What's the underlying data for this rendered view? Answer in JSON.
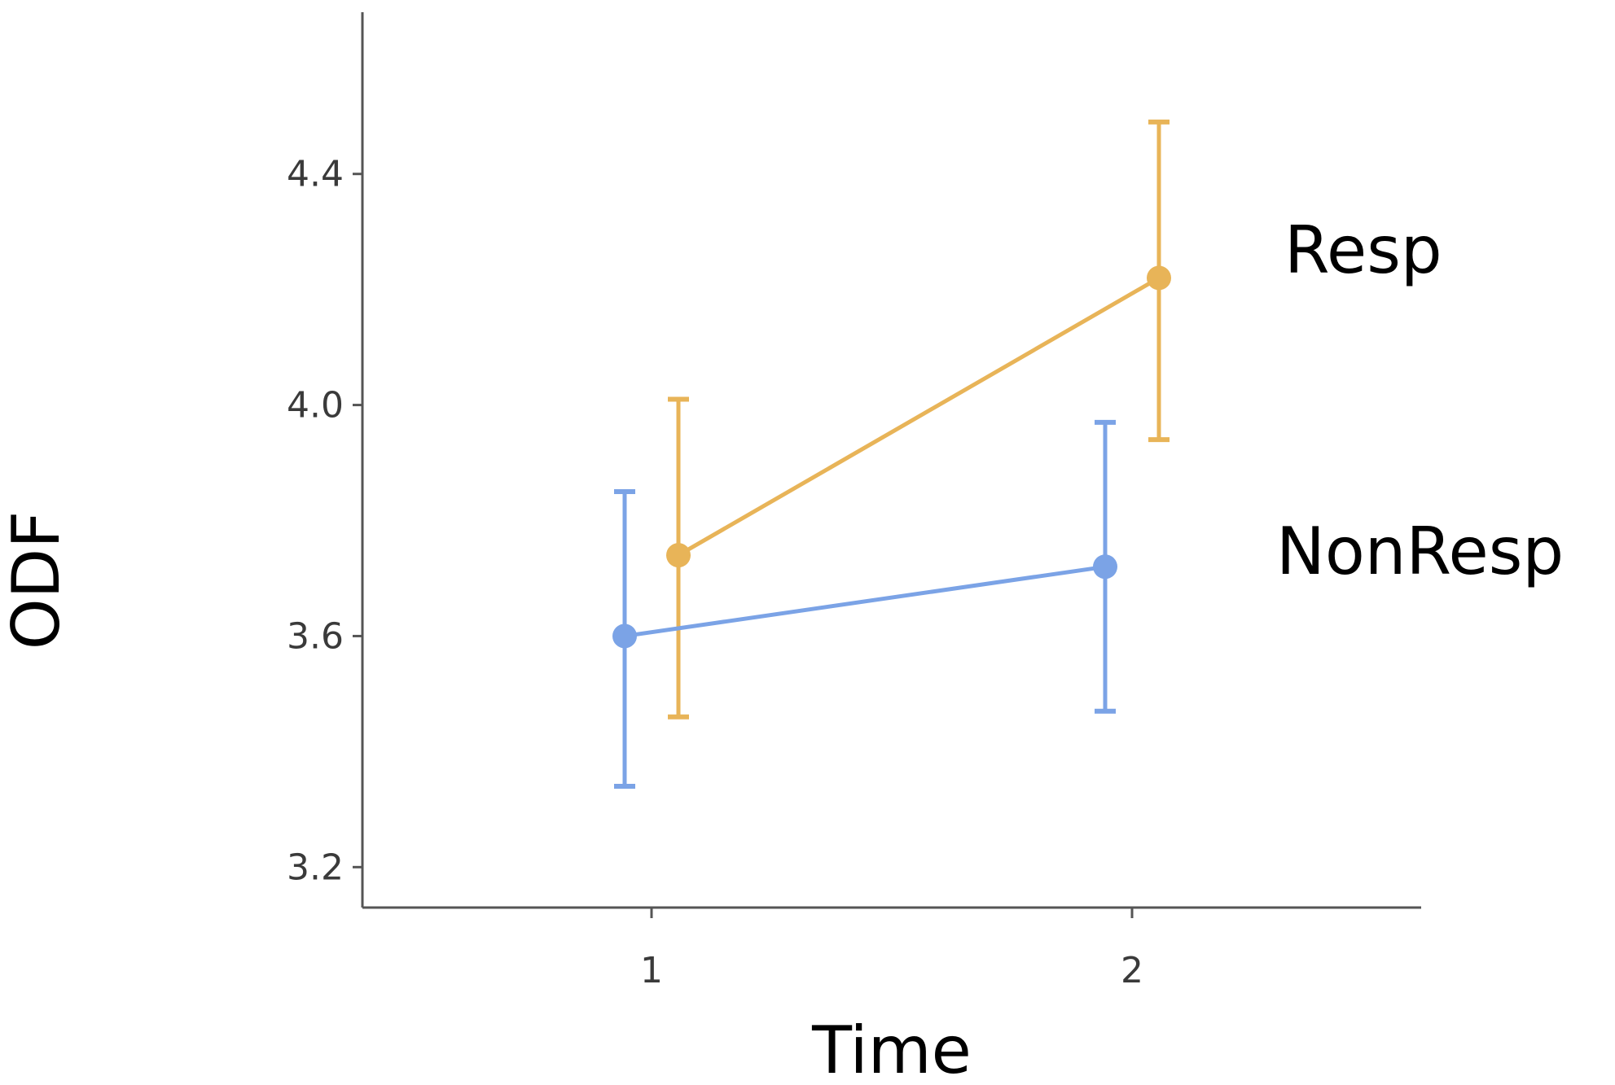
{
  "chart_data": {
    "type": "line",
    "xlabel": "Time",
    "ylabel": "ODF",
    "x": [
      1,
      2
    ],
    "x_tick_labels": [
      "1",
      "2"
    ],
    "ylim": [
      3.13,
      4.68
    ],
    "y_ticks": [
      3.2,
      3.6,
      4.0,
      4.4
    ],
    "y_tick_labels": [
      "3.2",
      "3.6",
      "4.0",
      "4.4"
    ],
    "grid": false,
    "legend": "direct labels at right of plot",
    "series": [
      {
        "name": "Resp",
        "color": "#e8b458",
        "values": [
          3.74,
          4.22
        ],
        "error_low": [
          3.46,
          3.94
        ],
        "error_high": [
          4.01,
          4.49
        ]
      },
      {
        "name": "NonResp",
        "color": "#7ba3e6",
        "values": [
          3.6,
          3.72
        ],
        "error_low": [
          3.34,
          3.47
        ],
        "error_high": [
          3.85,
          3.97
        ]
      }
    ]
  }
}
